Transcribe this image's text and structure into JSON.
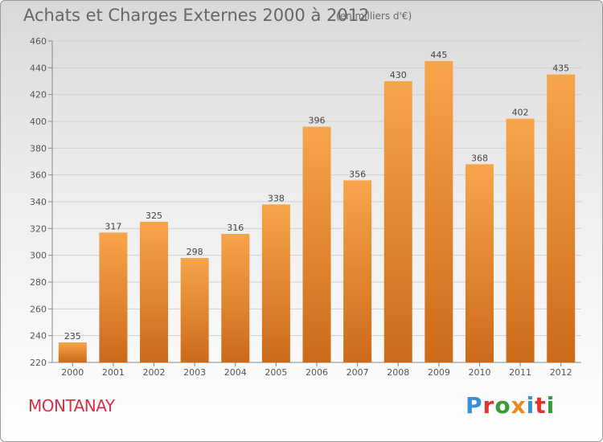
{
  "header": {
    "title": "Achats et Charges Externes 2000 à 2012",
    "subtitle": "(en milliers d'€)"
  },
  "footer": {
    "commune": "MONTANAY",
    "logo_text": "Proxiti"
  },
  "colors": {
    "bar_light": "#f7a54a",
    "bar_dark": "#cc6a1a",
    "commune": "#d2334a",
    "logo": [
      "#3a8fd8",
      "#e2332e",
      "#3a9a3a",
      "#f08a1c",
      "#3a8fd8",
      "#e2332e",
      "#3a9a3a"
    ]
  },
  "chart_data": {
    "type": "bar",
    "title": "Achats et Charges Externes 2000 à 2012",
    "subtitle": "(en milliers d'€)",
    "categories": [
      "2000",
      "2001",
      "2002",
      "2003",
      "2004",
      "2005",
      "2006",
      "2007",
      "2008",
      "2009",
      "2010",
      "2011",
      "2012"
    ],
    "values": [
      235,
      317,
      325,
      298,
      316,
      338,
      396,
      356,
      430,
      445,
      368,
      402,
      435
    ],
    "xlabel": "",
    "ylabel": "",
    "ylim": [
      220,
      460
    ],
    "yticks": [
      220,
      240,
      260,
      280,
      300,
      320,
      340,
      360,
      380,
      400,
      420,
      440,
      460
    ],
    "grid": true,
    "data_labels": true
  }
}
